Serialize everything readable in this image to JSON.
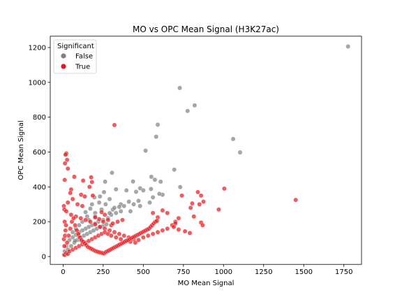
{
  "chart_data": {
    "type": "scatter",
    "title": "MO vs OPC Mean Signal (H3K27ac)",
    "xlabel": "MO Mean Signal",
    "ylabel": "OPC Mean Signal",
    "xlim": [
      -80,
      1860
    ],
    "ylim": [
      -45,
      1265
    ],
    "x_ticks": [
      0,
      250,
      500,
      750,
      1000,
      1250,
      1500,
      1750
    ],
    "y_ticks": [
      0,
      200,
      400,
      600,
      800,
      1000,
      1200
    ],
    "x_tick_labels": [
      "0",
      "250",
      "500",
      "750",
      "1000",
      "1250",
      "1500",
      "1750"
    ],
    "y_tick_labels": [
      "0",
      "200",
      "400",
      "600",
      "800",
      "1000",
      "1200"
    ],
    "legend": {
      "title": "Significant",
      "position": "top-left",
      "entries": [
        {
          "label": "False",
          "color": "#808080"
        },
        {
          "label": "True",
          "color": "#e8151b"
        }
      ]
    },
    "grid": false,
    "series": [
      {
        "name": "False",
        "color": "#808080",
        "points": [
          [
            1776,
            1206
          ],
          [
            727,
            968
          ],
          [
            820,
            868
          ],
          [
            776,
            836
          ],
          [
            590,
            757
          ],
          [
            580,
            688
          ],
          [
            1060,
            675
          ],
          [
            1103,
            598
          ],
          [
            514,
            608
          ],
          [
            693,
            499
          ],
          [
            305,
            481
          ],
          [
            572,
            441
          ],
          [
            550,
            458
          ],
          [
            608,
            430
          ],
          [
            436,
            431
          ],
          [
            548,
            388
          ],
          [
            480,
            392
          ],
          [
            455,
            372
          ],
          [
            500,
            380
          ],
          [
            395,
            380
          ],
          [
            330,
            386
          ],
          [
            262,
            430
          ],
          [
            730,
            399
          ],
          [
            560,
            340
          ],
          [
            620,
            355
          ],
          [
            540,
            310
          ],
          [
            470,
            320
          ],
          [
            410,
            315
          ],
          [
            360,
            300
          ],
          [
            420,
            260
          ],
          [
            350,
            285
          ],
          [
            310,
            270
          ],
          [
            265,
            300
          ],
          [
            225,
            310
          ],
          [
            180,
            300
          ],
          [
            195,
            340
          ],
          [
            290,
            330
          ],
          [
            600,
            360
          ],
          [
            255,
            370
          ],
          [
            230,
            345
          ],
          [
            170,
            275
          ],
          [
            140,
            255
          ],
          [
            330,
            250
          ],
          [
            300,
            240
          ],
          [
            280,
            220
          ],
          [
            250,
            210
          ],
          [
            220,
            200
          ],
          [
            200,
            190
          ],
          [
            180,
            180
          ],
          [
            160,
            170
          ],
          [
            140,
            160
          ],
          [
            120,
            150
          ],
          [
            100,
            140
          ],
          [
            80,
            125
          ],
          [
            60,
            110
          ],
          [
            40,
            95
          ],
          [
            20,
            60
          ],
          [
            10,
            30
          ],
          [
            5,
            10
          ],
          [
            30,
            40
          ],
          [
            50,
            60
          ],
          [
            70,
            80
          ],
          [
            90,
            95
          ],
          [
            110,
            110
          ],
          [
            130,
            120
          ],
          [
            150,
            130
          ],
          [
            170,
            140
          ],
          [
            190,
            150
          ],
          [
            210,
            160
          ],
          [
            230,
            170
          ],
          [
            250,
            175
          ],
          [
            270,
            185
          ],
          [
            120,
            200
          ],
          [
            100,
            180
          ],
          [
            80,
            160
          ],
          [
            60,
            140
          ],
          [
            150,
            230
          ],
          [
            200,
            250
          ],
          [
            240,
            270
          ],
          [
            290,
            250
          ],
          [
            320,
            280
          ],
          [
            360,
            260
          ],
          [
            380,
            290
          ],
          [
            440,
            300
          ],
          [
            480,
            290
          ],
          [
            160,
            210
          ],
          [
            200,
            230
          ],
          [
            95,
            120
          ],
          [
            75,
            90
          ],
          [
            115,
            90
          ]
        ]
      },
      {
        "name": "True",
        "color": "#e8151b",
        "points": [
          [
            320,
            755
          ],
          [
            20,
            592
          ],
          [
            15,
            585
          ],
          [
            25,
            555
          ],
          [
            12,
            535
          ],
          [
            30,
            505
          ],
          [
            70,
            458
          ],
          [
            10,
            440
          ],
          [
            50,
            385
          ],
          [
            45,
            365
          ],
          [
            125,
            436
          ],
          [
            175,
            455
          ],
          [
            180,
            428
          ],
          [
            165,
            400
          ],
          [
            112,
            355
          ],
          [
            135,
            345
          ],
          [
            185,
            350
          ],
          [
            60,
            330
          ],
          [
            30,
            310
          ],
          [
            90,
            300
          ],
          [
            120,
            290
          ],
          [
            5,
            290
          ],
          [
            8,
            270
          ],
          [
            20,
            260
          ],
          [
            50,
            240
          ],
          [
            80,
            230
          ],
          [
            110,
            220
          ],
          [
            140,
            210
          ],
          [
            170,
            200
          ],
          [
            200,
            185
          ],
          [
            230,
            170
          ],
          [
            260,
            160
          ],
          [
            290,
            150
          ],
          [
            320,
            140
          ],
          [
            350,
            130
          ],
          [
            380,
            120
          ],
          [
            410,
            110
          ],
          [
            440,
            100
          ],
          [
            470,
            95
          ],
          [
            500,
            110
          ],
          [
            530,
            120
          ],
          [
            560,
            130
          ],
          [
            590,
            140
          ],
          [
            620,
            150
          ],
          [
            650,
            160
          ],
          [
            680,
            180
          ],
          [
            700,
            200
          ],
          [
            720,
            220
          ],
          [
            860,
            350
          ],
          [
            875,
            315
          ],
          [
            840,
            370
          ],
          [
            805,
            305
          ],
          [
            795,
            280
          ],
          [
            850,
            300
          ],
          [
            815,
            230
          ],
          [
            860,
            195
          ],
          [
            870,
            180
          ],
          [
            740,
            350
          ],
          [
            1005,
            390
          ],
          [
            970,
            270
          ],
          [
            1450,
            325
          ],
          [
            560,
            250
          ],
          [
            590,
            225
          ],
          [
            620,
            265
          ],
          [
            650,
            250
          ],
          [
            700,
            190
          ],
          [
            690,
            170
          ],
          [
            720,
            155
          ],
          [
            760,
            145
          ],
          [
            790,
            135
          ],
          [
            10,
            10
          ],
          [
            20,
            20
          ],
          [
            30,
            15
          ],
          [
            40,
            30
          ],
          [
            60,
            40
          ],
          [
            80,
            50
          ],
          [
            100,
            60
          ],
          [
            120,
            70
          ],
          [
            140,
            80
          ],
          [
            160,
            90
          ],
          [
            180,
            100
          ],
          [
            200,
            110
          ],
          [
            220,
            120
          ],
          [
            240,
            130
          ],
          [
            260,
            140
          ],
          [
            280,
            130
          ],
          [
            300,
            120
          ],
          [
            330,
            110
          ],
          [
            360,
            100
          ],
          [
            390,
            90
          ],
          [
            420,
            85
          ],
          [
            450,
            80
          ],
          [
            15,
            150
          ],
          [
            10,
            200
          ],
          [
            5,
            100
          ],
          [
            12,
            120
          ],
          [
            18,
            180
          ],
          [
            8,
            60
          ],
          [
            25,
            80
          ],
          [
            35,
            120
          ],
          [
            45,
            160
          ],
          [
            55,
            200
          ],
          [
            65,
            220
          ],
          [
            75,
            180
          ],
          [
            85,
            150
          ],
          [
            95,
            130
          ],
          [
            105,
            110
          ],
          [
            115,
            95
          ],
          [
            125,
            85
          ],
          [
            135,
            75
          ],
          [
            145,
            65
          ],
          [
            155,
            55
          ],
          [
            165,
            50
          ],
          [
            175,
            45
          ],
          [
            185,
            40
          ],
          [
            195,
            35
          ],
          [
            205,
            30
          ],
          [
            215,
            28
          ],
          [
            225,
            25
          ],
          [
            235,
            22
          ],
          [
            245,
            20
          ],
          [
            255,
            18
          ],
          [
            265,
            25
          ],
          [
            275,
            30
          ],
          [
            285,
            35
          ],
          [
            295,
            40
          ],
          [
            305,
            45
          ],
          [
            315,
            50
          ],
          [
            325,
            55
          ],
          [
            335,
            60
          ],
          [
            345,
            65
          ],
          [
            355,
            70
          ],
          [
            365,
            75
          ],
          [
            375,
            80
          ],
          [
            385,
            85
          ],
          [
            395,
            90
          ],
          [
            405,
            95
          ],
          [
            415,
            100
          ],
          [
            425,
            105
          ],
          [
            435,
            110
          ],
          [
            445,
            115
          ],
          [
            455,
            120
          ],
          [
            465,
            125
          ],
          [
            475,
            130
          ],
          [
            485,
            135
          ],
          [
            495,
            140
          ],
          [
            505,
            145
          ],
          [
            515,
            150
          ],
          [
            525,
            155
          ],
          [
            535,
            160
          ],
          [
            545,
            170
          ],
          [
            555,
            180
          ],
          [
            565,
            190
          ],
          [
            575,
            200
          ],
          [
            585,
            205
          ],
          [
            300,
            180
          ],
          [
            310,
            190
          ],
          [
            340,
            200
          ],
          [
            370,
            210
          ],
          [
            250,
            200
          ],
          [
            225,
            215
          ],
          [
            200,
            225
          ],
          [
            260,
            240
          ],
          [
            240,
            255
          ],
          [
            280,
            210
          ]
        ]
      }
    ]
  }
}
